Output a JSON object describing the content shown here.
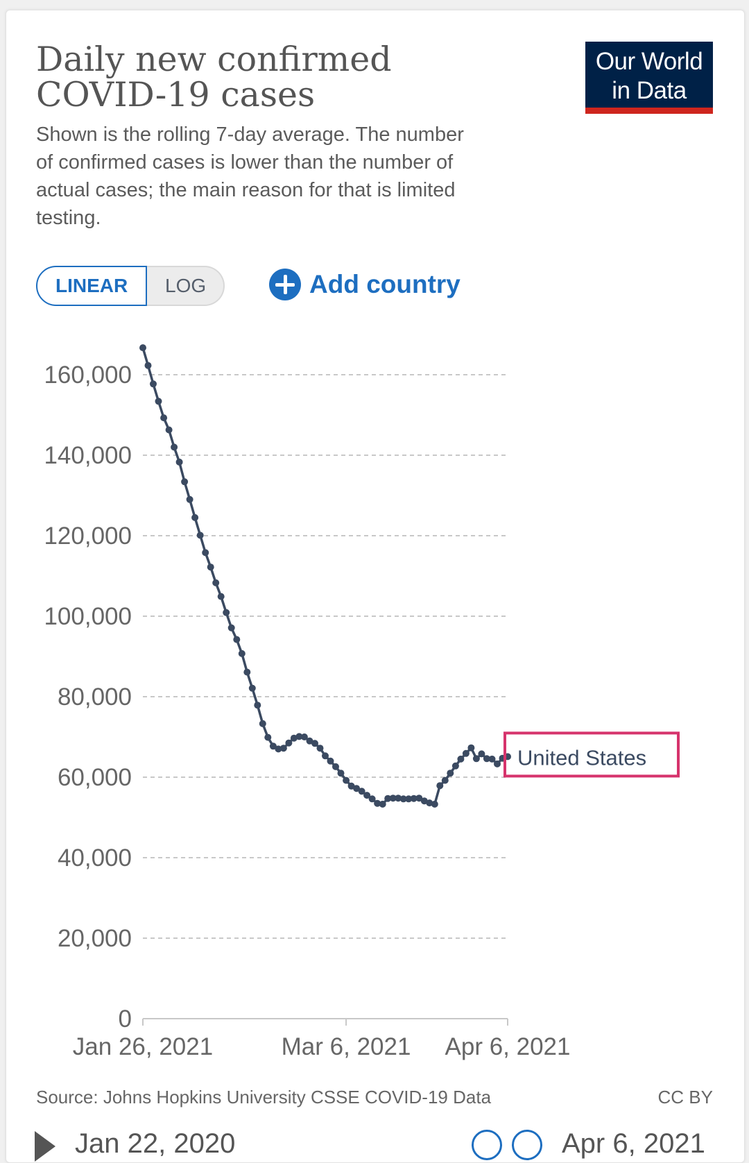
{
  "header": {
    "title_line1": "Daily new confirmed",
    "title_line2": "COVID-19 cases",
    "subtitle_line1": "Shown is the rolling 7-day average. The number",
    "subtitle_line2": "of confirmed cases is lower than the number of",
    "subtitle_line3": "actual cases; the main reason for that is limited",
    "subtitle_line4": "testing."
  },
  "logo": {
    "line1": "Our World",
    "line2": "in Data"
  },
  "controls": {
    "linear_label": "LINEAR",
    "log_label": "LOG",
    "add_country_label": "Add country"
  },
  "colors": {
    "series": "#3b4a61",
    "accent": "#1d6ec0",
    "highlight_box": "#d6336c",
    "logo_bg": "#002147",
    "logo_bar": "#ce261e"
  },
  "chart_data": {
    "type": "line",
    "title": "Daily new confirmed COVID-19 cases",
    "ylim": [
      0,
      160000
    ],
    "yticks": [
      0,
      20000,
      40000,
      60000,
      80000,
      100000,
      120000,
      140000,
      160000
    ],
    "ytick_labels": [
      "0",
      "20,000",
      "40,000",
      "60,000",
      "80,000",
      "100,000",
      "120,000",
      "140,000",
      "160,000"
    ],
    "xlim": [
      "2021-01-26",
      "2021-04-06"
    ],
    "xticks": [
      "2021-01-26",
      "2021-03-06",
      "2021-04-06"
    ],
    "xtick_labels": [
      "Jan 26, 2021",
      "Mar 6, 2021",
      "Apr 6, 2021"
    ],
    "grid": true,
    "series": [
      {
        "name": "United States",
        "x": [
          "2021-01-26",
          "2021-01-27",
          "2021-01-28",
          "2021-01-29",
          "2021-01-30",
          "2021-01-31",
          "2021-02-01",
          "2021-02-02",
          "2021-02-03",
          "2021-02-04",
          "2021-02-05",
          "2021-02-06",
          "2021-02-07",
          "2021-02-08",
          "2021-02-09",
          "2021-02-10",
          "2021-02-11",
          "2021-02-12",
          "2021-02-13",
          "2021-02-14",
          "2021-02-15",
          "2021-02-16",
          "2021-02-17",
          "2021-02-18",
          "2021-02-19",
          "2021-02-20",
          "2021-02-21",
          "2021-02-22",
          "2021-02-23",
          "2021-02-24",
          "2021-02-25",
          "2021-02-26",
          "2021-02-27",
          "2021-02-28",
          "2021-03-01",
          "2021-03-02",
          "2021-03-03",
          "2021-03-04",
          "2021-03-05",
          "2021-03-06",
          "2021-03-07",
          "2021-03-08",
          "2021-03-09",
          "2021-03-10",
          "2021-03-11",
          "2021-03-12",
          "2021-03-13",
          "2021-03-14",
          "2021-03-15",
          "2021-03-16",
          "2021-03-17",
          "2021-03-18",
          "2021-03-19",
          "2021-03-20",
          "2021-03-21",
          "2021-03-22",
          "2021-03-23",
          "2021-03-24",
          "2021-03-25",
          "2021-03-26",
          "2021-03-27",
          "2021-03-28",
          "2021-03-29",
          "2021-03-30",
          "2021-03-31",
          "2021-04-01",
          "2021-04-02",
          "2021-04-03",
          "2021-04-04",
          "2021-04-05",
          "2021-04-06"
        ],
        "y": [
          166700,
          162300,
          157700,
          153400,
          149300,
          146300,
          142000,
          138300,
          133400,
          129000,
          124500,
          120100,
          115800,
          112200,
          108300,
          104900,
          100900,
          97100,
          94200,
          90700,
          86100,
          82100,
          77900,
          73300,
          69900,
          67700,
          67000,
          67200,
          68500,
          69700,
          70100,
          70000,
          69000,
          68400,
          67200,
          65300,
          64000,
          62600,
          61000,
          59200,
          57800,
          57200,
          56500,
          55500,
          54600,
          53500,
          53300,
          54700,
          54800,
          54800,
          54600,
          54600,
          54700,
          54800,
          54100,
          53600,
          53300,
          57900,
          59200,
          61000,
          62800,
          64500,
          65900,
          67300,
          64600,
          65800,
          64600,
          64500,
          63300,
          64700,
          65100
        ]
      }
    ],
    "end_label": "United States"
  },
  "footer": {
    "source": "Source: Johns Hopkins University CSSE COVID-19 Data",
    "license": "CC BY"
  },
  "timeline": {
    "start_label": "Jan 22, 2020",
    "end_label": "Apr 6, 2021"
  }
}
